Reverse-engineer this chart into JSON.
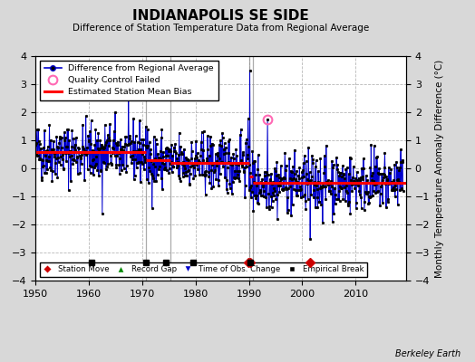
{
  "title": "INDIANAPOLIS SE SIDE",
  "subtitle": "Difference of Station Temperature Data from Regional Average",
  "ylabel": "Monthly Temperature Anomaly Difference (°C)",
  "xlim": [
    1950,
    2019.5
  ],
  "ylim": [
    -4,
    4
  ],
  "xticks": [
    1950,
    1960,
    1970,
    1980,
    1990,
    2000,
    2010
  ],
  "bg_color": "#d8d8d8",
  "plot_bg_color": "#ffffff",
  "grid_color": "#b0b0b0",
  "line_color": "#0000cc",
  "marker_color": "#000000",
  "bias_color": "#ff0000",
  "qc_failed_color": "#ff69b4",
  "station_move_color": "#cc0000",
  "empirical_break_color": "#000000",
  "vertical_lines": [
    1970.75,
    1975.25,
    1990.0,
    1990.75
  ],
  "bias_segments": [
    {
      "x": [
        1950.0,
        1970.75
      ],
      "y": [
        0.58,
        0.58
      ]
    },
    {
      "x": [
        1970.75,
        1975.25
      ],
      "y": [
        0.28,
        0.28
      ]
    },
    {
      "x": [
        1975.25,
        1990.0
      ],
      "y": [
        0.18,
        0.18
      ]
    },
    {
      "x": [
        1990.0,
        1990.75
      ],
      "y": [
        -0.28,
        -0.28
      ]
    },
    {
      "x": [
        1990.75,
        2019.5
      ],
      "y": [
        -0.52,
        -0.52
      ]
    }
  ],
  "station_moves": [
    1989.83,
    1990.25,
    2001.5
  ],
  "empirical_breaks": [
    1960.5,
    1970.75,
    1974.5,
    1979.5,
    1990.25
  ],
  "qc_failed_x": [
    1993.5
  ],
  "qc_failed_y": [
    1.75
  ],
  "random_seed": 42,
  "data_start": 1950.0,
  "data_end": 2018.9
}
